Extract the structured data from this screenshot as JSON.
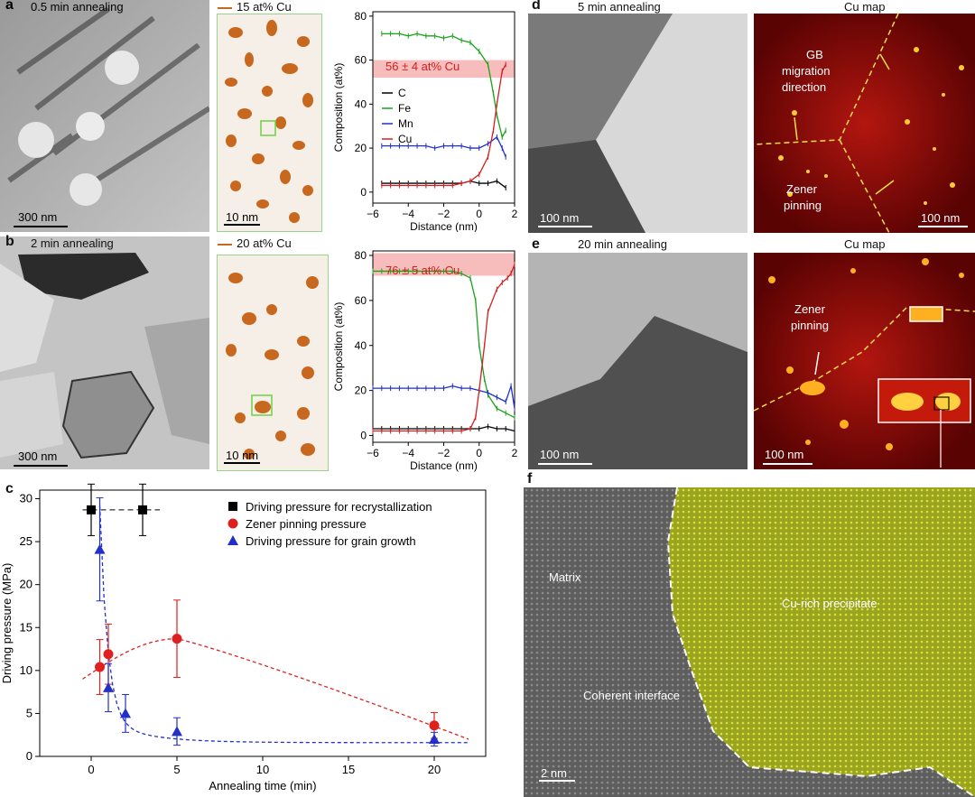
{
  "panels": {
    "a": {
      "letter": "a",
      "tem_title": "0.5 min annealing",
      "tem_scale": "300 nm",
      "apt_title": "15 at% Cu",
      "apt_scale": "10 nm",
      "band_label": "56 ± 4 at% Cu"
    },
    "b": {
      "letter": "b",
      "tem_title": "2 min annealing",
      "tem_scale": "300 nm",
      "apt_title": "20 at% Cu",
      "apt_scale": "10 nm",
      "band_label": "76 ± 5 at% Cu"
    },
    "c": {
      "letter": "c"
    },
    "d": {
      "letter": "d",
      "left_title": "5 min annealing",
      "right_title": "Cu map",
      "left_scale": "100 nm",
      "right_scale": "100 nm",
      "annot_gb": "GB",
      "annot_migration": "migration",
      "annot_direction": "direction",
      "annot_zener": "Zener",
      "annot_pinning": "pinning"
    },
    "e": {
      "letter": "e",
      "left_title": "20 min annealing",
      "right_title": "Cu map",
      "left_scale": "100 nm",
      "right_scale": "100 nm",
      "annot_zener": "Zener",
      "annot_pinning": "pinning"
    },
    "f": {
      "letter": "f",
      "matrix": "Matrix",
      "precipitate": "Cu-rich precipitate",
      "interface": "Coherent interface",
      "scale": "2 nm"
    }
  },
  "chart_data": [
    {
      "id": "composition-a",
      "type": "line",
      "xlabel": "Distance (nm)",
      "ylabel": "Composition (at%)",
      "xlim": [
        -6,
        2
      ],
      "ylim": [
        -5,
        82
      ],
      "xticks": [
        -6,
        -4,
        -2,
        0,
        2
      ],
      "yticks": [
        0,
        20,
        40,
        60,
        80
      ],
      "band": [
        52,
        60
      ],
      "legend": [
        "C",
        "Fe",
        "Mn",
        "Cu"
      ],
      "series": [
        {
          "name": "C",
          "color": "#000000",
          "x": [
            -5.5,
            -5,
            -4.5,
            -4,
            -3.5,
            -3,
            -2.5,
            -2,
            -1.5,
            -1,
            -0.5,
            0,
            0.5,
            1,
            1.5
          ],
          "y": [
            4,
            4,
            4,
            4,
            4,
            4,
            4,
            4,
            4,
            4,
            5,
            4,
            4,
            5,
            2
          ]
        },
        {
          "name": "Fe",
          "color": "#1aa31a",
          "x": [
            -5.5,
            -5,
            -4.5,
            -4,
            -3.5,
            -3,
            -2.5,
            -2,
            -1.5,
            -1,
            -0.5,
            0,
            0.5,
            0.8,
            1,
            1.3,
            1.5
          ],
          "y": [
            72,
            72,
            72,
            71,
            72,
            71,
            71,
            70,
            71,
            69,
            68,
            64,
            58,
            45,
            35,
            25,
            28
          ]
        },
        {
          "name": "Mn",
          "color": "#1f2fd1",
          "x": [
            -5.5,
            -5,
            -4.5,
            -4,
            -3.5,
            -3,
            -2.5,
            -2,
            -1.5,
            -1,
            -0.5,
            0,
            0.5,
            1,
            1.3,
            1.5
          ],
          "y": [
            21,
            21,
            21,
            21,
            21,
            21,
            20,
            21,
            21,
            21,
            20,
            20,
            22,
            25,
            20,
            16
          ]
        },
        {
          "name": "Cu",
          "color": "#d22020",
          "x": [
            -5.5,
            -5,
            -4.5,
            -4,
            -3.5,
            -3,
            -2.5,
            -2,
            -1.5,
            -1,
            -0.5,
            0,
            0.5,
            0.8,
            1,
            1.3,
            1.5
          ],
          "y": [
            3,
            3,
            3,
            3,
            3,
            3,
            3,
            3,
            3,
            4,
            5,
            8,
            16,
            28,
            40,
            55,
            58
          ]
        }
      ]
    },
    {
      "id": "composition-b",
      "type": "line",
      "xlabel": "Distance (nm)",
      "ylabel": "Composition (at%)",
      "xlim": [
        -6,
        2
      ],
      "ylim": [
        -3,
        82
      ],
      "xticks": [
        -6,
        -4,
        -2,
        0,
        2
      ],
      "yticks": [
        0,
        20,
        40,
        60,
        80
      ],
      "band": [
        71,
        81
      ],
      "legend": [],
      "series": [
        {
          "name": "C",
          "color": "#000000",
          "x": [
            -6,
            -5.5,
            -5,
            -4.5,
            -4,
            -3.5,
            -3,
            -2.5,
            -2,
            -1.5,
            -1,
            -0.5,
            0,
            0.5,
            1,
            1.5,
            2
          ],
          "y": [
            3,
            3,
            3,
            3,
            3,
            3,
            3,
            3,
            3,
            3,
            3,
            3,
            3,
            4,
            3,
            3,
            2
          ]
        },
        {
          "name": "Fe",
          "color": "#1aa31a",
          "x": [
            -6,
            -5.5,
            -5,
            -4.5,
            -4,
            -3.5,
            -3,
            -2.5,
            -2,
            -1.5,
            -1,
            -0.5,
            -0.2,
            0,
            0.3,
            0.5,
            1,
            1.5,
            2
          ],
          "y": [
            73,
            73,
            73,
            73,
            73,
            73,
            73,
            73,
            73,
            73,
            72,
            70,
            60,
            40,
            25,
            18,
            12,
            10,
            8
          ]
        },
        {
          "name": "Mn",
          "color": "#1f2fd1",
          "x": [
            -6,
            -5.5,
            -5,
            -4.5,
            -4,
            -3.5,
            -3,
            -2.5,
            -2,
            -1.5,
            -1,
            -0.5,
            0,
            0.5,
            1,
            1.5,
            1.8,
            2
          ],
          "y": [
            21,
            21,
            21,
            21,
            21,
            21,
            21,
            21,
            21,
            22,
            21,
            21,
            20,
            19,
            17,
            15,
            22,
            12
          ]
        },
        {
          "name": "Cu",
          "color": "#d22020",
          "x": [
            -6,
            -5.5,
            -5,
            -4.5,
            -4,
            -3.5,
            -3,
            -2.5,
            -2,
            -1.5,
            -1,
            -0.5,
            -0.2,
            0,
            0.3,
            0.5,
            1,
            1.3,
            1.6,
            1.8,
            2
          ],
          "y": [
            2,
            2,
            2,
            2,
            2,
            2,
            2,
            2,
            2,
            2,
            2,
            3,
            8,
            20,
            40,
            55,
            65,
            68,
            70,
            72,
            76
          ]
        }
      ]
    },
    {
      "id": "driving-pressure",
      "type": "scatter",
      "xlabel": "Annealing time (min)",
      "ylabel": "Driving pressure (MPa)",
      "xlim": [
        -3,
        23
      ],
      "ylim": [
        0,
        31
      ],
      "xticks": [
        0,
        5,
        10,
        15,
        20
      ],
      "yticks": [
        0,
        5,
        10,
        15,
        20,
        25,
        30
      ],
      "legend": [
        "Driving pressure for recrystallization",
        "Zener pinning pressure",
        "Driving pressure for grain growth"
      ],
      "series": [
        {
          "name": "Driving pressure for recrystallization",
          "color": "#000000",
          "marker": "square",
          "x": [
            0,
            3
          ],
          "y": [
            28.7,
            28.7
          ],
          "err": [
            3,
            3
          ]
        },
        {
          "name": "Zener pinning pressure",
          "color": "#e01f1f",
          "marker": "circle",
          "x": [
            0.5,
            1,
            5,
            20
          ],
          "y": [
            10.4,
            11.9,
            13.7,
            3.6
          ],
          "err": [
            3.2,
            3.5,
            4.5,
            1.5
          ]
        },
        {
          "name": "Driving pressure for grain growth",
          "color": "#2230c8",
          "marker": "triangle",
          "x": [
            0.5,
            1,
            2,
            5,
            20
          ],
          "y": [
            24.1,
            8,
            5,
            2.9,
            2
          ],
          "err": [
            6,
            2.8,
            2.2,
            1.6,
            0.8
          ]
        }
      ]
    }
  ]
}
